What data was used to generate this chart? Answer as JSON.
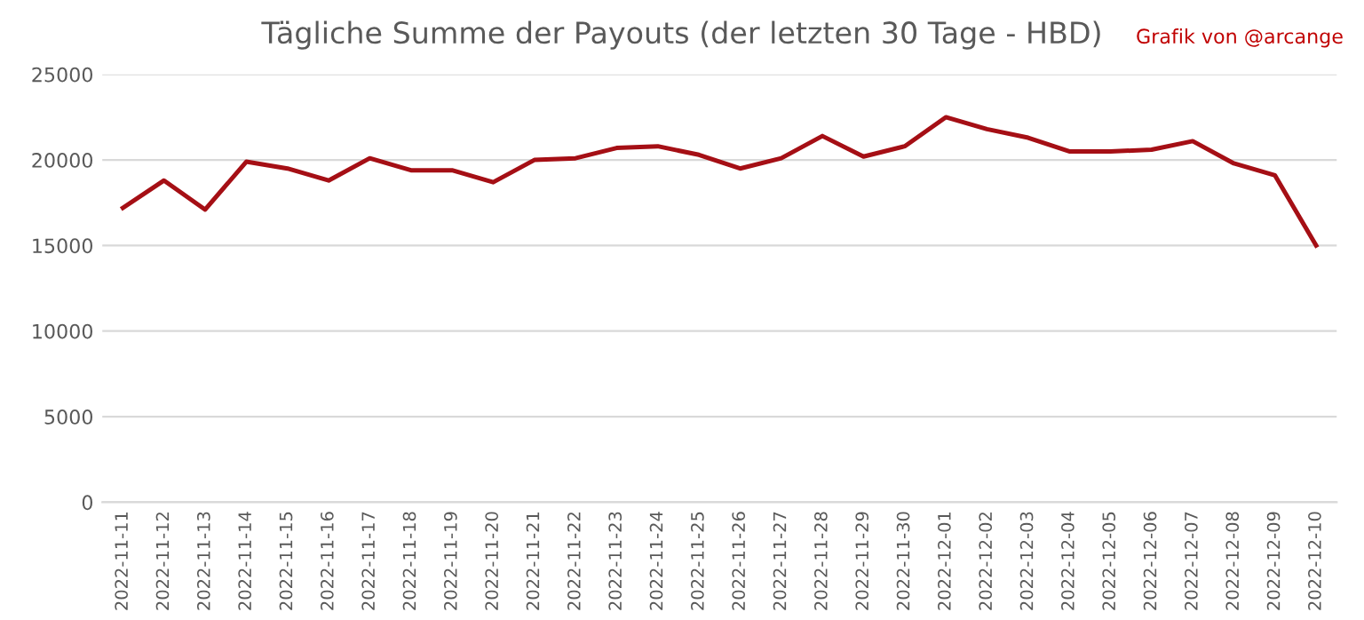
{
  "chart_data": {
    "type": "line",
    "title": "Tägliche Summe der Payouts (der letzten 30 Tage - HBD)",
    "annotations": [
      "Grafik von @arcange"
    ],
    "categories": [
      "2022-11-11",
      "2022-11-12",
      "2022-11-13",
      "2022-11-14",
      "2022-11-15",
      "2022-11-16",
      "2022-11-17",
      "2022-11-18",
      "2022-11-19",
      "2022-11-20",
      "2022-11-21",
      "2022-11-22",
      "2022-11-23",
      "2022-11-24",
      "2022-11-25",
      "2022-11-26",
      "2022-11-27",
      "2022-11-28",
      "2022-11-29",
      "2022-11-30",
      "2022-12-01",
      "2022-12-02",
      "2022-12-03",
      "2022-12-04",
      "2022-12-05",
      "2022-12-06",
      "2022-12-07",
      "2022-12-08",
      "2022-12-09",
      "2022-12-10"
    ],
    "series": [
      {
        "color": "#a50f15",
        "values": [
          17200,
          18800,
          17100,
          19900,
          19500,
          18800,
          20100,
          19400,
          19400,
          18700,
          20000,
          20100,
          20700,
          20800,
          20300,
          19500,
          20100,
          21400,
          20200,
          20800,
          22500,
          21800,
          21300,
          20500,
          20500,
          20600,
          21100,
          19800,
          19100,
          15000
        ]
      }
    ],
    "ylim": [
      0,
      25000
    ],
    "yticks": [
      0,
      5000,
      10000,
      15000,
      20000,
      25000
    ],
    "grid": "y",
    "legend": false,
    "marker": "none",
    "line_style": "solid"
  }
}
